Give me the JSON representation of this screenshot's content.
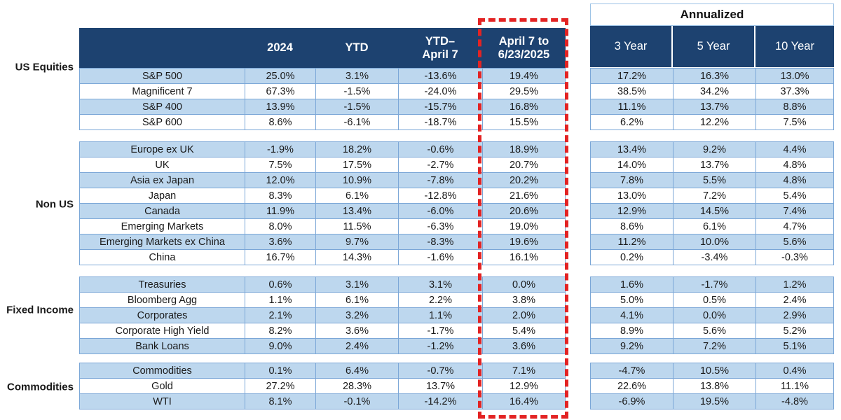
{
  "colors": {
    "header_navy": "#1d4270",
    "row_light_blue": "#bdd7ee",
    "grid_border_blue": "#7ba7d7",
    "outer_border_light": "#9dc3e6",
    "highlight_red": "#e32323",
    "header_text": "#ffffff",
    "body_text": "#1a1a1a"
  },
  "header": {
    "col_2024": "2024",
    "col_ytd": "YTD",
    "col_ytd_apr7_line1": "YTD–",
    "col_ytd_apr7_line2": "April 7",
    "col_apr7_line1": "April 7 to",
    "col_apr7_line2": "6/23/2025"
  },
  "annualized": {
    "title": "Annualized",
    "col_3yr": "3 Year",
    "col_5yr": "5 Year",
    "col_10yr": "10 Year"
  },
  "chart_data": {
    "type": "table",
    "columns": [
      "",
      "2024",
      "YTD",
      "YTD–April 7",
      "April 7 to 6/23/2025",
      "3 Year (Annualized)",
      "5 Year (Annualized)",
      "10 Year (Annualized)"
    ],
    "highlighted_column": "April 7 to 6/23/2025",
    "sections": [
      {
        "label": "US Equities",
        "rows": [
          {
            "name": "S&P 500",
            "values": [
              "25.0%",
              "3.1%",
              "-13.6%",
              "19.4%",
              "17.2%",
              "16.3%",
              "13.0%"
            ]
          },
          {
            "name": "Magnificent 7",
            "values": [
              "67.3%",
              "-1.5%",
              "-24.0%",
              "29.5%",
              "38.5%",
              "34.2%",
              "37.3%"
            ]
          },
          {
            "name": "S&P 400",
            "values": [
              "13.9%",
              "-1.5%",
              "-15.7%",
              "16.8%",
              "11.1%",
              "13.7%",
              "8.8%"
            ]
          },
          {
            "name": "S&P 600",
            "values": [
              "8.6%",
              "-6.1%",
              "-18.7%",
              "15.5%",
              "6.2%",
              "12.2%",
              "7.5%"
            ]
          }
        ]
      },
      {
        "label": "Non US",
        "rows": [
          {
            "name": "Europe ex UK",
            "values": [
              "-1.9%",
              "18.2%",
              "-0.6%",
              "18.9%",
              "13.4%",
              "9.2%",
              "4.4%"
            ]
          },
          {
            "name": "UK",
            "values": [
              "7.5%",
              "17.5%",
              "-2.7%",
              "20.7%",
              "14.0%",
              "13.7%",
              "4.8%"
            ]
          },
          {
            "name": "Asia ex Japan",
            "values": [
              "12.0%",
              "10.9%",
              "-7.8%",
              "20.2%",
              "7.8%",
              "5.5%",
              "4.8%"
            ]
          },
          {
            "name": "Japan",
            "values": [
              "8.3%",
              "6.1%",
              "-12.8%",
              "21.6%",
              "13.0%",
              "7.2%",
              "5.4%"
            ]
          },
          {
            "name": "Canada",
            "values": [
              "11.9%",
              "13.4%",
              "-6.0%",
              "20.6%",
              "12.9%",
              "14.5%",
              "7.4%"
            ]
          },
          {
            "name": "Emerging Markets",
            "values": [
              "8.0%",
              "11.5%",
              "-6.3%",
              "19.0%",
              "8.6%",
              "6.1%",
              "4.7%"
            ]
          },
          {
            "name": "Emerging Markets ex China",
            "values": [
              "3.6%",
              "9.7%",
              "-8.3%",
              "19.6%",
              "11.2%",
              "10.0%",
              "5.6%"
            ]
          },
          {
            "name": "China",
            "values": [
              "16.7%",
              "14.3%",
              "-1.6%",
              "16.1%",
              "0.2%",
              "-3.4%",
              "-0.3%"
            ]
          }
        ]
      },
      {
        "label": "Fixed Income",
        "rows": [
          {
            "name": "Treasuries",
            "values": [
              "0.6%",
              "3.1%",
              "3.1%",
              "0.0%",
              "1.6%",
              "-1.7%",
              "1.2%"
            ]
          },
          {
            "name": "Bloomberg Agg",
            "values": [
              "1.1%",
              "6.1%",
              "2.2%",
              "3.8%",
              "5.0%",
              "0.5%",
              "2.4%"
            ]
          },
          {
            "name": "Corporates",
            "values": [
              "2.1%",
              "3.2%",
              "1.1%",
              "2.0%",
              "4.1%",
              "0.0%",
              "2.9%"
            ]
          },
          {
            "name": "Corporate High Yield",
            "values": [
              "8.2%",
              "3.6%",
              "-1.7%",
              "5.4%",
              "8.9%",
              "5.6%",
              "5.2%"
            ]
          },
          {
            "name": "Bank Loans",
            "values": [
              "9.0%",
              "2.4%",
              "-1.2%",
              "3.6%",
              "9.2%",
              "7.2%",
              "5.1%"
            ]
          }
        ]
      },
      {
        "label": "Commodities",
        "rows": [
          {
            "name": "Commodities",
            "values": [
              "0.1%",
              "6.4%",
              "-0.7%",
              "7.1%",
              "-4.7%",
              "10.5%",
              "0.4%"
            ]
          },
          {
            "name": "Gold",
            "values": [
              "27.2%",
              "28.3%",
              "13.7%",
              "12.9%",
              "22.6%",
              "13.8%",
              "11.1%"
            ]
          },
          {
            "name": "WTI",
            "values": [
              "8.1%",
              "-0.1%",
              "-14.2%",
              "16.4%",
              "-6.9%",
              "19.5%",
              "-4.8%"
            ]
          }
        ]
      }
    ]
  }
}
